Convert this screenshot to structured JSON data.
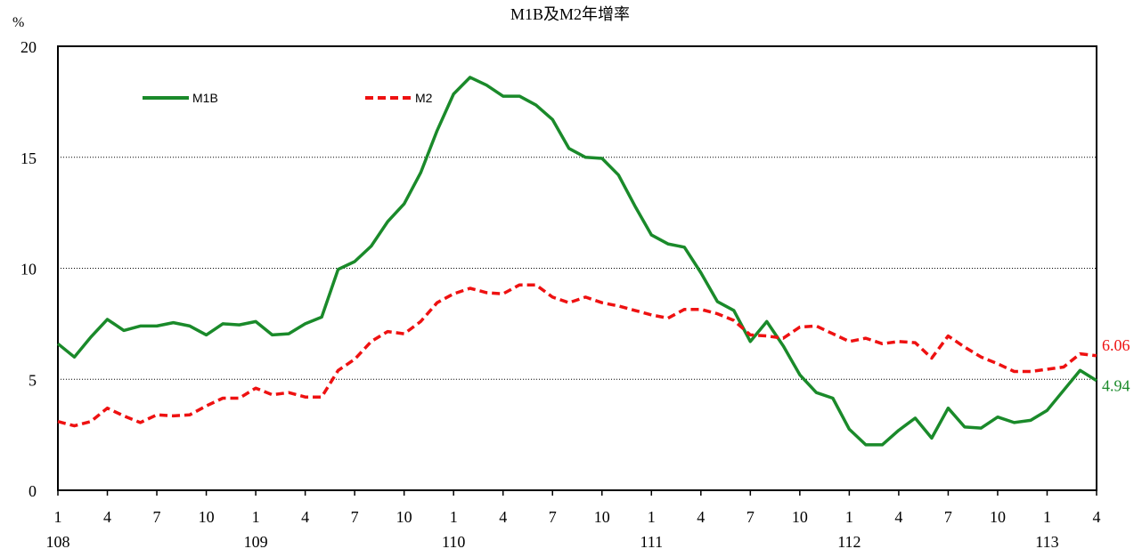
{
  "chart_data": {
    "type": "line",
    "title": "M1B及M2年增率",
    "ylabel": "%",
    "ylim": [
      0,
      20
    ],
    "yticks": [
      "0",
      "5",
      "10",
      "15",
      "20"
    ],
    "grid": "horizontal dotted lines at 5, 10, 15",
    "x_tick_labels": [
      "1",
      "4",
      "7",
      "10",
      "1",
      "4",
      "7",
      "10",
      "1",
      "4",
      "7",
      "10",
      "1",
      "4",
      "7",
      "10",
      "1",
      "4",
      "7",
      "10",
      "1",
      "4"
    ],
    "x_year_labels": [
      "108",
      "109",
      "110",
      "111",
      "112",
      "113"
    ],
    "legend_position": "top-left inside plot",
    "series": [
      {
        "name": "M1B",
        "color": "#1a8a2a",
        "style": "solid",
        "end_label": "4.94",
        "values": [
          6.6,
          6.0,
          6.9,
          7.7,
          7.2,
          7.4,
          7.4,
          7.55,
          7.4,
          7.0,
          7.5,
          7.45,
          7.6,
          7.0,
          7.05,
          7.5,
          7.8,
          9.95,
          10.3,
          11.0,
          12.1,
          12.9,
          14.3,
          16.2,
          17.85,
          18.6,
          18.25,
          17.75,
          17.75,
          17.35,
          16.7,
          15.4,
          15.0,
          14.95,
          14.2,
          12.8,
          11.5,
          11.1,
          10.95,
          9.8,
          8.5,
          8.1,
          6.7,
          7.6,
          6.5,
          5.2,
          4.4,
          4.15,
          2.75,
          2.05,
          2.05,
          2.7,
          3.25,
          2.35,
          3.7,
          2.85,
          2.8,
          3.3,
          3.05,
          3.15,
          3.6,
          4.5,
          5.4,
          4.94
        ]
      },
      {
        "name": "M2",
        "color": "#ee1111",
        "style": "dashed",
        "end_label": "6.06",
        "values": [
          3.1,
          2.9,
          3.1,
          3.7,
          3.35,
          3.05,
          3.4,
          3.35,
          3.4,
          3.8,
          4.15,
          4.15,
          4.6,
          4.3,
          4.4,
          4.2,
          4.2,
          5.4,
          5.9,
          6.7,
          7.15,
          7.05,
          7.6,
          8.45,
          8.85,
          9.1,
          8.9,
          8.85,
          9.25,
          9.25,
          8.7,
          8.45,
          8.7,
          8.45,
          8.3,
          8.1,
          7.9,
          7.75,
          8.15,
          8.15,
          7.95,
          7.65,
          7.0,
          6.95,
          6.85,
          7.35,
          7.4,
          7.05,
          6.7,
          6.85,
          6.6,
          6.7,
          6.65,
          5.95,
          6.95,
          6.45,
          6.0,
          5.7,
          5.35,
          5.35,
          5.45,
          5.55,
          6.15,
          6.06
        ]
      }
    ]
  }
}
